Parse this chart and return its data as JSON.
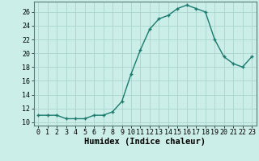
{
  "x": [
    0,
    1,
    2,
    3,
    4,
    5,
    6,
    7,
    8,
    9,
    10,
    11,
    12,
    13,
    14,
    15,
    16,
    17,
    18,
    19,
    20,
    21,
    22,
    23
  ],
  "y": [
    11,
    11,
    11,
    10.5,
    10.5,
    10.5,
    11,
    11,
    11.5,
    13,
    17,
    20.5,
    23.5,
    25,
    25.5,
    26.5,
    27,
    26.5,
    26,
    22,
    19.5,
    18.5,
    18,
    19.5
  ],
  "line_color": "#1a7a6e",
  "marker_color": "#1a7a6e",
  "bg_color": "#cceee8",
  "grid_color": "#aad4ce",
  "xlabel": "Humidex (Indice chaleur)",
  "xlim": [
    -0.5,
    23.5
  ],
  "ylim": [
    9.5,
    27.5
  ],
  "yticks": [
    10,
    12,
    14,
    16,
    18,
    20,
    22,
    24,
    26
  ],
  "xtick_labels": [
    "0",
    "1",
    "2",
    "3",
    "4",
    "5",
    "6",
    "7",
    "8",
    "9",
    "10",
    "11",
    "12",
    "13",
    "14",
    "15",
    "16",
    "17",
    "18",
    "19",
    "20",
    "21",
    "22",
    "23"
  ],
  "xlabel_fontsize": 7.5,
  "tick_fontsize": 6.0
}
